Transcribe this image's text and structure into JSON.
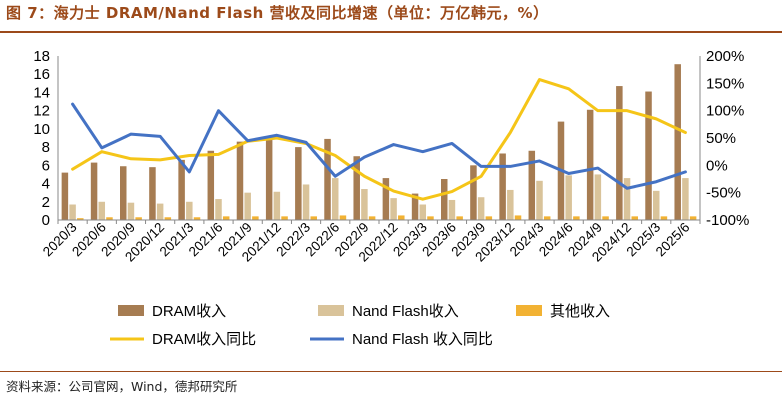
{
  "header": {
    "title": "图 7：海力士 DRAM/Nand Flash 营收及同比增速（单位：万亿韩元，%）"
  },
  "footer": {
    "source": "资料来源：公司官网，Wind，德邦研究所"
  },
  "colors": {
    "title": "#9c4a1a",
    "dram_bar": "#a67c52",
    "nand_bar": "#d9c39a",
    "other_bar": "#f2b233",
    "dram_yoy": "#f5c518",
    "nand_yoy": "#4472c4"
  },
  "chart_data": {
    "type": "bar",
    "categories": [
      "2020/3",
      "2020/6",
      "2020/9",
      "2020/12",
      "2021/3",
      "2021/6",
      "2021/9",
      "2021/12",
      "2022/3",
      "2022/6",
      "2022/9",
      "2022/12",
      "2023/3",
      "2023/6",
      "2023/9",
      "2023/12",
      "2024/3",
      "2024/6",
      "2024/9",
      "2024/12",
      "2025/3",
      "2025/6"
    ],
    "series": [
      {
        "name": "DRAM收入",
        "kind": "bar",
        "axis": "left",
        "values": [
          5.2,
          6.3,
          5.9,
          5.8,
          6.6,
          7.6,
          8.6,
          8.9,
          8.0,
          8.9,
          7.0,
          4.6,
          2.9,
          4.5,
          6.0,
          7.3,
          7.6,
          10.8,
          12.1,
          14.7,
          14.1,
          17.1
        ]
      },
      {
        "name": "Nand Flash收入",
        "kind": "bar",
        "axis": "left",
        "values": [
          1.7,
          2.0,
          1.9,
          1.8,
          2.0,
          2.3,
          3.0,
          3.1,
          3.9,
          4.6,
          3.4,
          2.4,
          1.7,
          2.2,
          2.5,
          3.3,
          4.3,
          4.9,
          5.0,
          4.6,
          3.2,
          4.6
        ]
      },
      {
        "name": "其他收入",
        "kind": "bar",
        "axis": "left",
        "values": [
          0.2,
          0.3,
          0.3,
          0.3,
          0.3,
          0.4,
          0.4,
          0.4,
          0.4,
          0.5,
          0.4,
          0.5,
          0.4,
          0.4,
          0.4,
          0.5,
          0.4,
          0.4,
          0.4,
          0.4,
          0.4,
          0.4
        ]
      },
      {
        "name": "DRAM收入同比",
        "kind": "line",
        "axis": "right",
        "values": [
          -7,
          25,
          12,
          10,
          18,
          20,
          44,
          50,
          40,
          18,
          -20,
          -47,
          -62,
          -48,
          -20,
          60,
          157,
          140,
          100,
          100,
          85,
          60
        ]
      },
      {
        "name": "Nand Flash 收入同比",
        "kind": "line",
        "axis": "right",
        "values": [
          112,
          32,
          57,
          53,
          -12,
          100,
          45,
          55,
          42,
          -20,
          15,
          38,
          25,
          40,
          -2,
          -2,
          8,
          -15,
          -5,
          -42,
          -30,
          -12
        ]
      }
    ],
    "left_axis": {
      "min": 0,
      "max": 18,
      "step": 2,
      "ticks": [
        "0",
        "2",
        "4",
        "6",
        "8",
        "10",
        "12",
        "14",
        "16",
        "18"
      ]
    },
    "right_axis": {
      "min": -100,
      "max": 200,
      "step": 50,
      "ticks": [
        "-100%",
        "-50%",
        "0%",
        "50%",
        "100%",
        "150%",
        "200%"
      ]
    },
    "grid": false,
    "legend_placement": "bottom"
  }
}
